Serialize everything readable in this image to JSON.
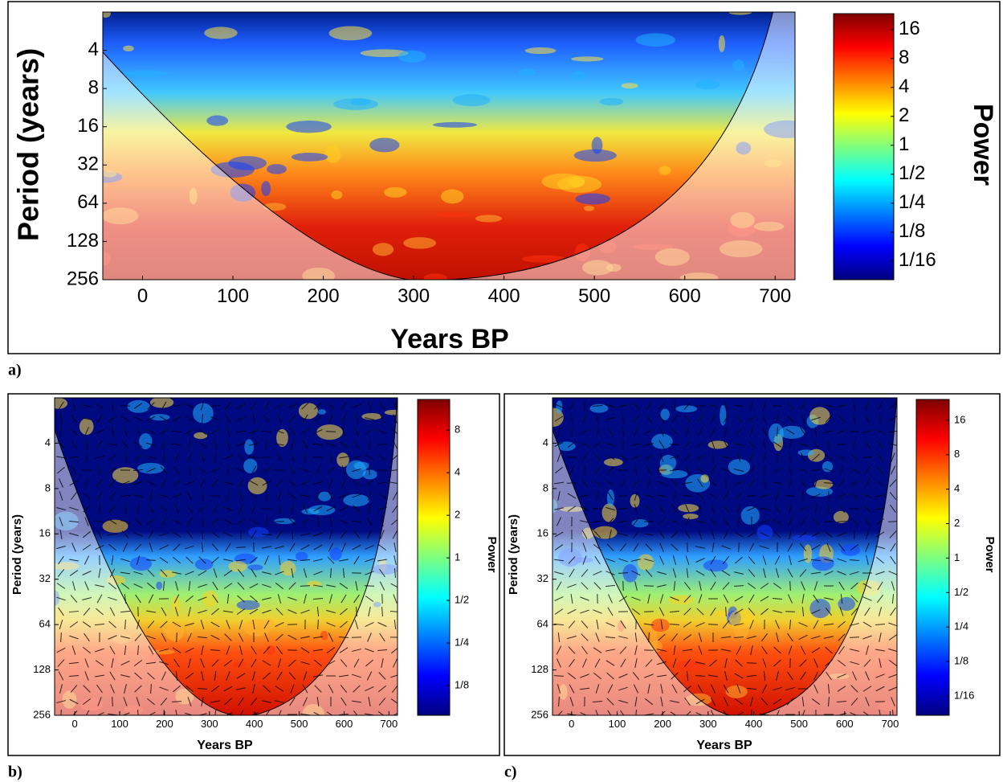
{
  "chart_data": [
    {
      "type": "heatmap",
      "panel_label": "a)",
      "x_label": "Years BP",
      "y_label": "Period (years)",
      "colorbar_label": "Power",
      "xlim": [
        -44,
        722
      ],
      "xticks": [
        0,
        100,
        200,
        300,
        400,
        500,
        600,
        700
      ],
      "ylim": [
        256,
        2
      ],
      "yticks": [
        4,
        8,
        16,
        32,
        64,
        128,
        256
      ],
      "ylog": true,
      "clim": [
        0.04,
        23.4
      ],
      "cticks": [
        {
          "value": 0.0625,
          "label": "1/16"
        },
        {
          "value": 0.125,
          "label": "1/8"
        },
        {
          "value": 0.25,
          "label": "1/4"
        },
        {
          "value": 0.5,
          "label": "1/2"
        },
        1,
        2,
        4,
        8,
        16
      ],
      "colormap": [
        "#00007f",
        "#0000ff",
        "#007fff",
        "#00ffff",
        "#7fff7f",
        "#ffff00",
        "#ff7f00",
        "#ff0000",
        "#7f0000"
      ],
      "phase_arrows": false
    },
    {
      "type": "heatmap",
      "panel_label": "b)",
      "x_label": "Years BP",
      "y_label": "Period (years)",
      "colorbar_label": "Power",
      "xlim": [
        -45,
        719
      ],
      "xticks": [
        0,
        100,
        200,
        300,
        400,
        500,
        600,
        700
      ],
      "ylim": [
        256,
        2
      ],
      "yticks": [
        4,
        8,
        16,
        32,
        64,
        128,
        256
      ],
      "ylog": true,
      "clim": [
        0.077,
        13.2
      ],
      "cticks": [
        {
          "value": 0.125,
          "label": "1/8"
        },
        {
          "value": 0.25,
          "label": "1/4"
        },
        {
          "value": 0.5,
          "label": "1/2"
        },
        1,
        2,
        4,
        8
      ],
      "colormap": [
        "#00007f",
        "#0000ff",
        "#007fff",
        "#00ffff",
        "#7fff7f",
        "#ffff00",
        "#ff7f00",
        "#ff0000",
        "#7f0000"
      ],
      "phase_arrows": true
    },
    {
      "type": "heatmap",
      "panel_label": "c)",
      "x_label": "Years BP",
      "y_label": "Period (years)",
      "colorbar_label": "Power",
      "xlim": [
        -42,
        715
      ],
      "xticks": [
        0,
        100,
        200,
        300,
        400,
        500,
        600,
        700
      ],
      "ylim": [
        256,
        2
      ],
      "yticks": [
        4,
        8,
        16,
        32,
        64,
        128,
        256
      ],
      "ylog": true,
      "clim": [
        0.0424,
        24.3
      ],
      "cticks": [
        {
          "value": 0.0625,
          "label": "1/16"
        },
        {
          "value": 0.125,
          "label": "1/8"
        },
        {
          "value": 0.25,
          "label": "1/4"
        },
        {
          "value": 0.5,
          "label": "1/2"
        },
        1,
        2,
        4,
        8,
        16
      ],
      "colormap": [
        "#00007f",
        "#0000ff",
        "#007fff",
        "#00ffff",
        "#7fff7f",
        "#ffff00",
        "#ff7f00",
        "#ff0000",
        "#7f0000"
      ],
      "phase_arrows": true
    }
  ]
}
